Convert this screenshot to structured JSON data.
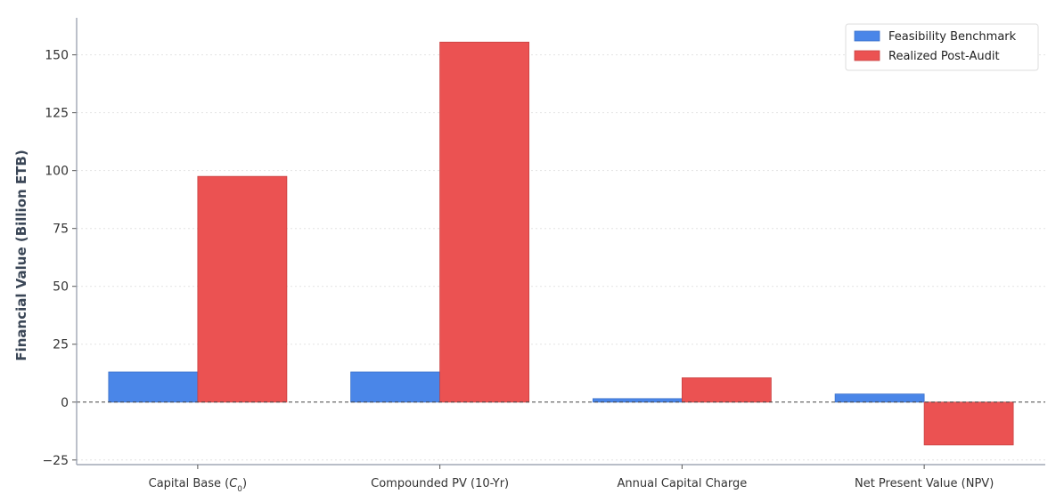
{
  "chart_data": {
    "type": "bar",
    "title": "",
    "xlabel": "",
    "ylabel": "Financial Value (Billion ETB)",
    "categories": [
      {
        "main": "Capital Base (",
        "italic": "C",
        "sub": "0",
        "tail": ")"
      },
      {
        "main": "Compounded PV (10-Yr)",
        "italic": "",
        "sub": "",
        "tail": ""
      },
      {
        "main": "Annual Capital Charge",
        "italic": "",
        "sub": "",
        "tail": ""
      },
      {
        "main": "Net Present Value (NPV)",
        "italic": "",
        "sub": "",
        "tail": ""
      }
    ],
    "series": [
      {
        "name": "Feasibility Benchmark",
        "color": "#4a86e8",
        "values": [
          13,
          13,
          1.5,
          3.5
        ]
      },
      {
        "name": "Realized Post-Audit",
        "color": "#eb5252",
        "values": [
          97.5,
          155.5,
          10.5,
          -18.5
        ]
      }
    ],
    "ylim": [
      -27,
      166
    ],
    "yticks": [
      -25,
      0,
      25,
      50,
      75,
      100,
      125,
      150
    ],
    "grid": "horizontal dotted",
    "zero_line": "dashed",
    "legend_position": "top-right"
  }
}
